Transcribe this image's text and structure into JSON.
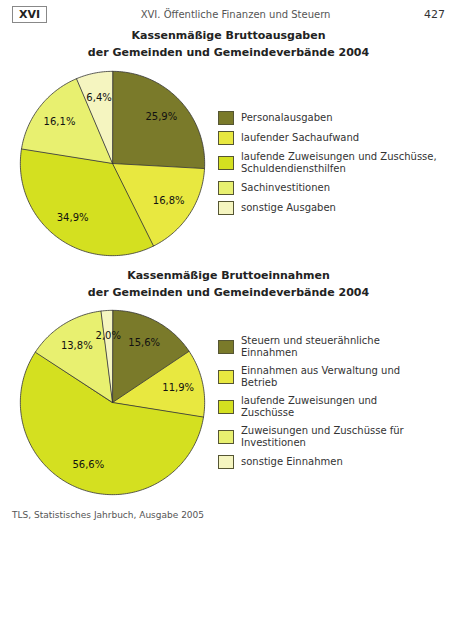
{
  "chart_data": [
    {
      "type": "pie",
      "title": "Kassenmäßige Bruttoausgaben",
      "subtitle": "der Gemeinden und Gemeindeverbände 2004",
      "categories": [
        "Personalausgaben",
        "laufender Sachaufwand",
        "laufende Zuweisungen und Zuschüsse,\nSchuldendiensthilfen",
        "Sachinvestitionen",
        "sonstige Ausgaben"
      ],
      "values": [
        25.9,
        16.8,
        34.9,
        16.1,
        6.4
      ],
      "value_labels": [
        "25,9%",
        "16,8%",
        "34,9%",
        "16,1%",
        "6,4%"
      ],
      "colors": [
        "#7a7a2a",
        "#e8e840",
        "#d4e020",
        "#e8f070",
        "#f5f5c0"
      ],
      "data_labels": true,
      "legend": "right",
      "annotations": [
        "XVI",
        "XVI. Öffentliche Finanzen und Steuern",
        "427",
        "TLS, Statistisches Jahrbuch, Ausgabe 2005"
      ]
    },
    {
      "type": "pie",
      "title": "Kassenmäßige Bruttoeinnahmen",
      "subtitle": "der Gemeinden und Gemeindeverbände 2004",
      "categories": [
        "Steuern und steuerähnliche\nEinnahmen",
        "Einnahmen aus Verwaltung und\nBetrieb",
        "laufende Zuweisungen und\nZuschüsse",
        "Zuweisungen und Zuschüsse für\nInvestitionen",
        "sonstige Einnahmen"
      ],
      "values": [
        15.6,
        11.9,
        56.6,
        13.8,
        2.0
      ],
      "value_labels": [
        "15,6%",
        "11,9%",
        "56,6%",
        "13,8%",
        "2,0%"
      ],
      "colors": [
        "#7a7a2a",
        "#e8e840",
        "#d4e020",
        "#e8f070",
        "#f5f5c0"
      ],
      "data_labels": true,
      "legend": "right"
    }
  ]
}
